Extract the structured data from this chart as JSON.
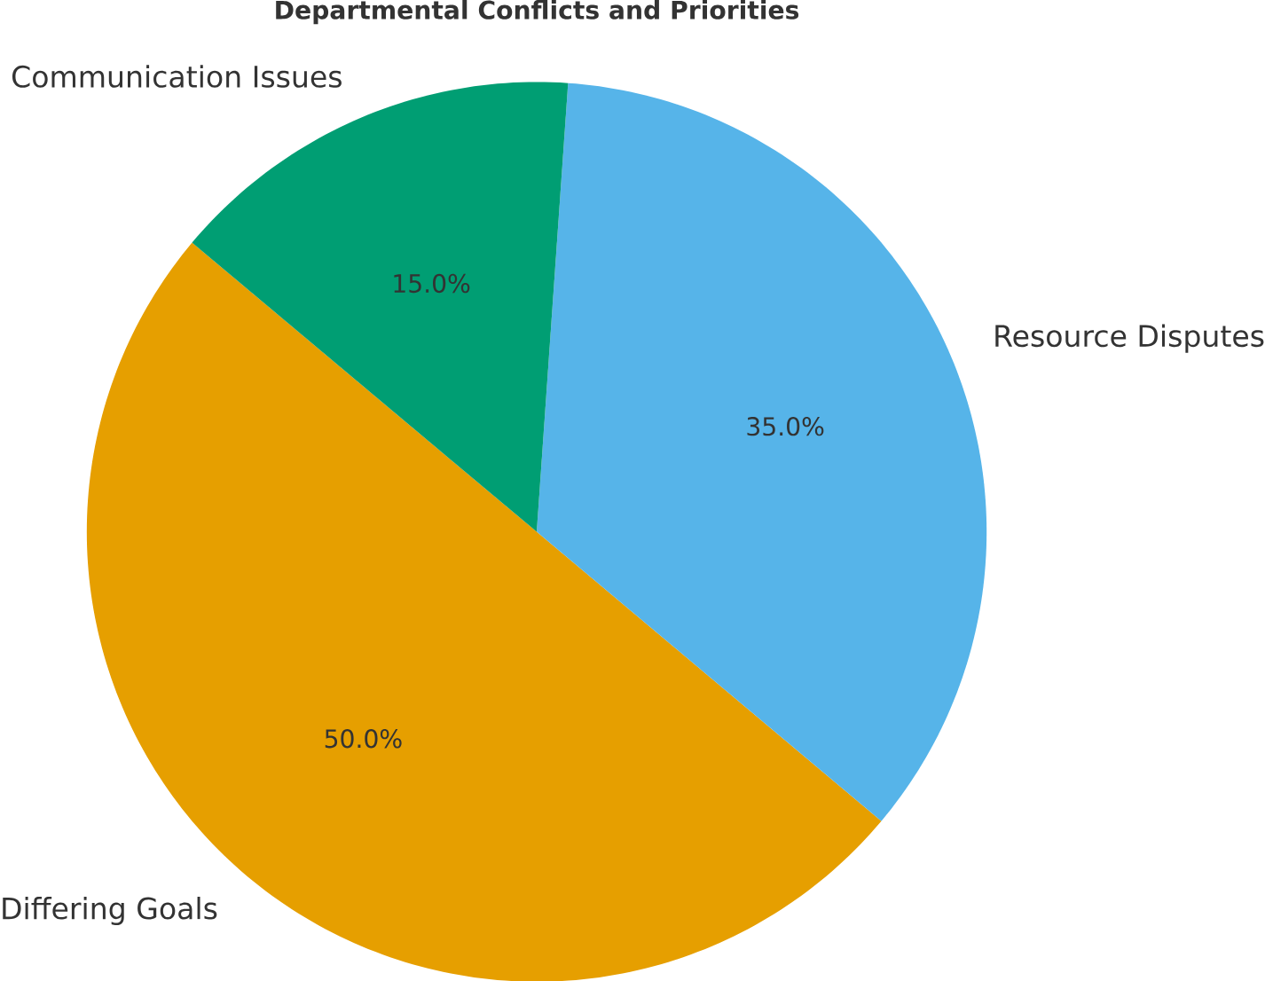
{
  "chart_data": {
    "type": "pie",
    "title": "Departmental Conflicts and Priorities",
    "categories": [
      "Differing Goals",
      "Resource Disputes",
      "Communication Issues"
    ],
    "values": [
      50,
      35,
      15
    ],
    "colors": [
      "#e69f00",
      "#56b4e9",
      "#009e73"
    ],
    "value_labels": [
      "50.0%",
      "35.0%",
      "15.0%"
    ]
  }
}
